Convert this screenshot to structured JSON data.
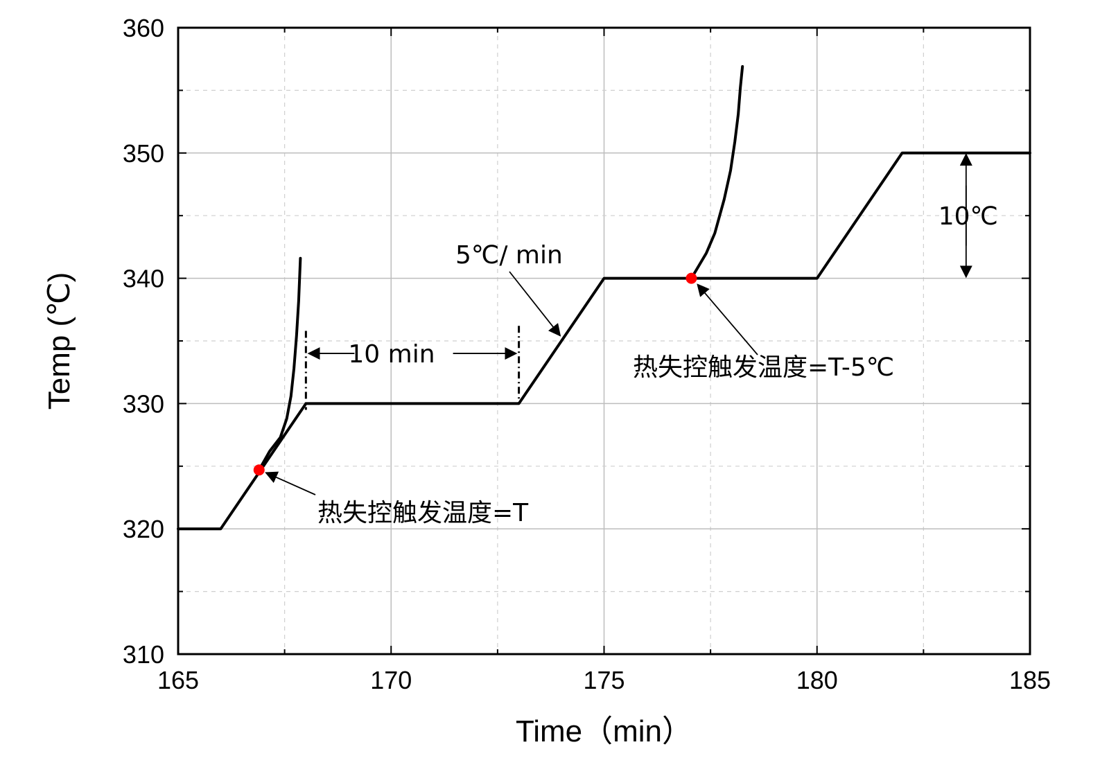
{
  "chart_data": {
    "type": "line",
    "xlabel": "Time（min）",
    "ylabel": "Temp (℃)",
    "xlim": [
      165,
      185
    ],
    "ylim": [
      310,
      360
    ],
    "xticks": [
      165,
      170,
      175,
      180,
      185
    ],
    "yticks": [
      310,
      320,
      330,
      340,
      350,
      360
    ],
    "grid": true,
    "legend": "none",
    "series": [
      {
        "role": "stepwise-heating-profile",
        "x": [
          165,
          166,
          168,
          173,
          175,
          180,
          182,
          185
        ],
        "y": [
          320,
          320,
          330,
          330,
          340,
          340,
          350,
          350
        ]
      },
      {
        "role": "runaway-curve-1",
        "x": [
          166.9,
          167.15,
          167.4,
          167.55,
          167.65,
          167.72,
          167.78,
          167.83,
          167.87
        ],
        "y": [
          324.7,
          326.2,
          327.3,
          328.8,
          330.6,
          332.8,
          335.4,
          338.2,
          341.6
        ]
      },
      {
        "role": "runaway-curve-2",
        "x": [
          177.05,
          177.4,
          177.6,
          177.82,
          177.97,
          178.07,
          178.15,
          178.2,
          178.25
        ],
        "y": [
          340.0,
          342.0,
          343.6,
          346.3,
          348.6,
          350.9,
          353.1,
          355.2,
          356.9
        ]
      }
    ],
    "markers": [
      {
        "x": 166.9,
        "y": 324.7,
        "color": "#ff0000"
      },
      {
        "x": 177.05,
        "y": 340.0,
        "color": "#ff0000"
      }
    ],
    "annotations": {
      "trigger_1": "热失控触发温度=T",
      "trigger_2": "热失控触发温度=T-5℃",
      "rate": "5℃/ min",
      "hold": "10 min",
      "step": "10℃"
    },
    "colors": {
      "line": "#000000",
      "marker": "#ff0000"
    }
  }
}
